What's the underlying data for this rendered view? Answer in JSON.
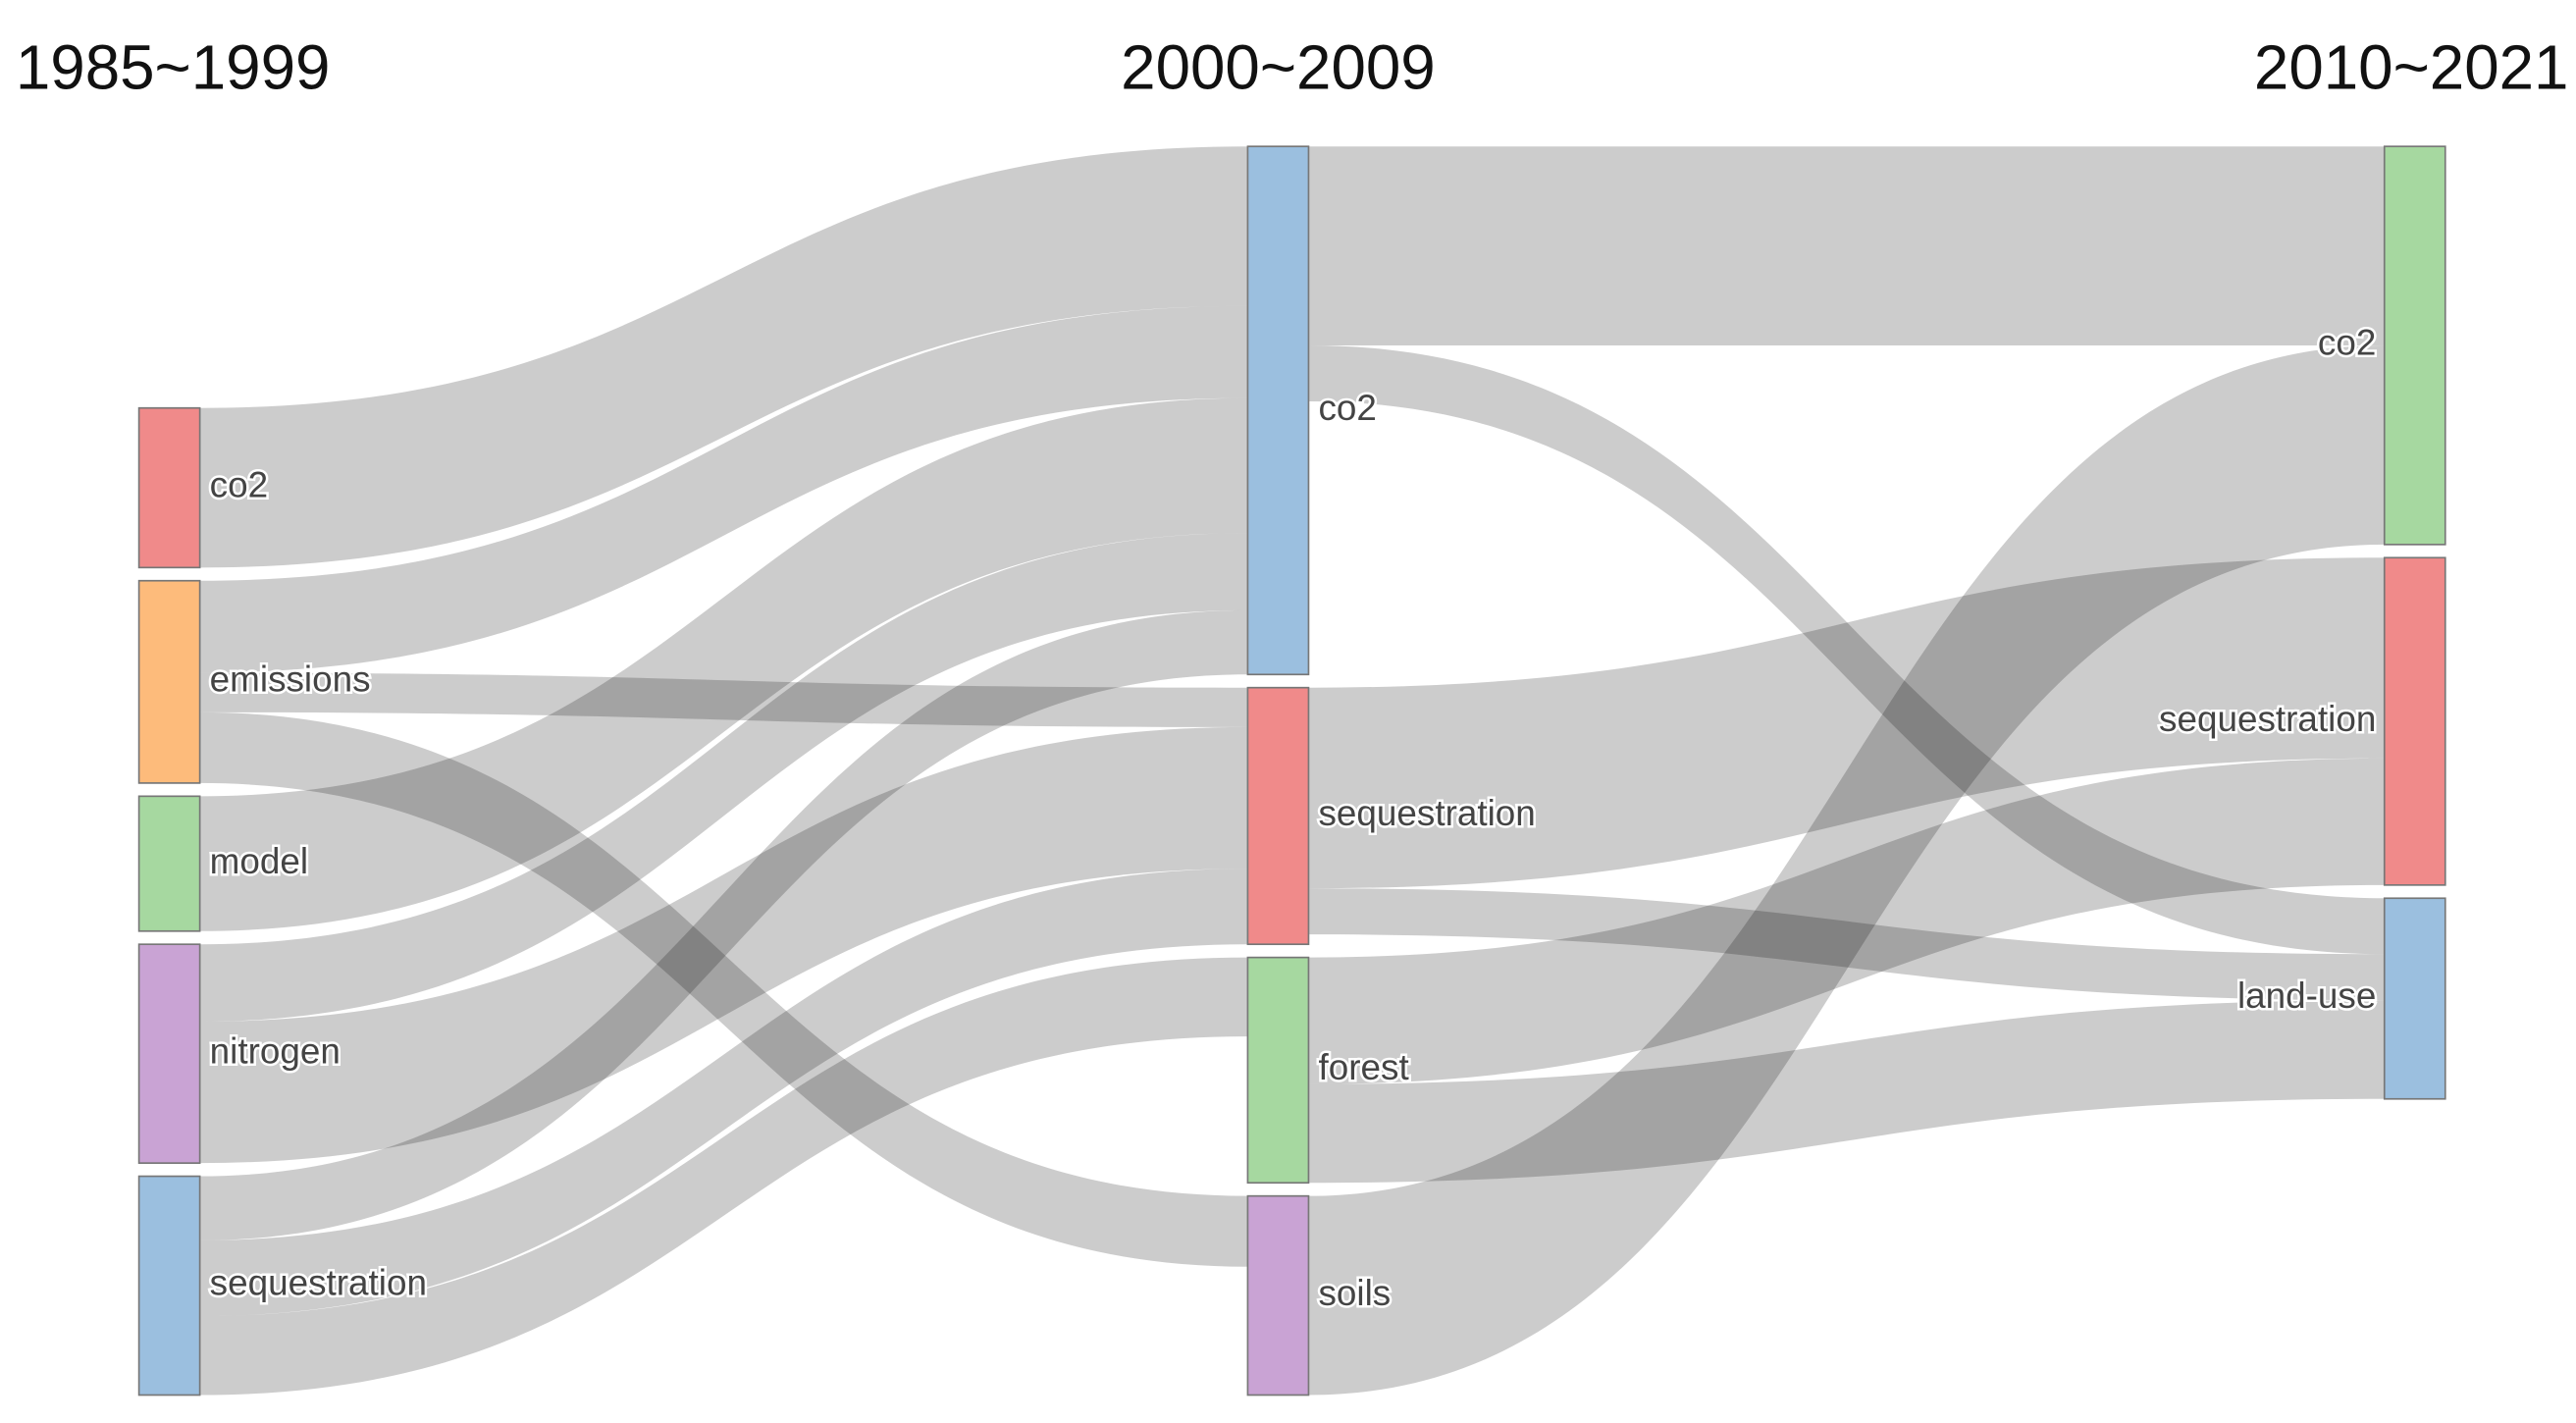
{
  "chart_data": {
    "type": "sankey",
    "columns": [
      "1985~1999",
      "2000~2009",
      "2010~2021"
    ],
    "nodes": [
      {
        "label": "co2",
        "color": "#f08a8a",
        "column": 0
      },
      {
        "label": "emissions",
        "color": "#fdbb7b",
        "column": 0
      },
      {
        "label": "model",
        "color": "#a6d8a0",
        "column": 0
      },
      {
        "label": "nitrogen",
        "color": "#c9a3d4",
        "column": 0
      },
      {
        "label": "sequestration",
        "color": "#9bbfdf",
        "column": 0
      },
      {
        "label": "co2",
        "color": "#9bbfdf",
        "column": 1
      },
      {
        "label": "sequestration",
        "color": "#f08a8a",
        "column": 1
      },
      {
        "label": "forest",
        "color": "#a6d8a0",
        "column": 1
      },
      {
        "label": "soils",
        "color": "#c9a3d4",
        "column": 1
      },
      {
        "label": "co2",
        "color": "#a6d8a0",
        "column": 2
      },
      {
        "label": "sequestration",
        "color": "#f08a8a",
        "column": 2
      },
      {
        "label": "land-use",
        "color": "#9bbfdf",
        "column": 2
      }
    ],
    "links": [
      {
        "source": 0,
        "target": 5,
        "value": 97
      },
      {
        "source": 1,
        "target": 5,
        "value": 56
      },
      {
        "source": 1,
        "target": 6,
        "value": 24
      },
      {
        "source": 1,
        "target": 8,
        "value": 43
      },
      {
        "source": 2,
        "target": 5,
        "value": 82
      },
      {
        "source": 3,
        "target": 5,
        "value": 47
      },
      {
        "source": 3,
        "target": 6,
        "value": 86
      },
      {
        "source": 4,
        "target": 5,
        "value": 39
      },
      {
        "source": 4,
        "target": 6,
        "value": 46
      },
      {
        "source": 4,
        "target": 7,
        "value": 48
      },
      {
        "source": 5,
        "target": 9,
        "value": 121
      },
      {
        "source": 5,
        "target": 11,
        "value": 34
      },
      {
        "source": 6,
        "target": 10,
        "value": 122
      },
      {
        "source": 6,
        "target": 11,
        "value": 28
      },
      {
        "source": 7,
        "target": 10,
        "value": 77
      },
      {
        "source": 7,
        "target": 11,
        "value": 60
      },
      {
        "source": 8,
        "target": 9,
        "value": 121
      }
    ]
  }
}
